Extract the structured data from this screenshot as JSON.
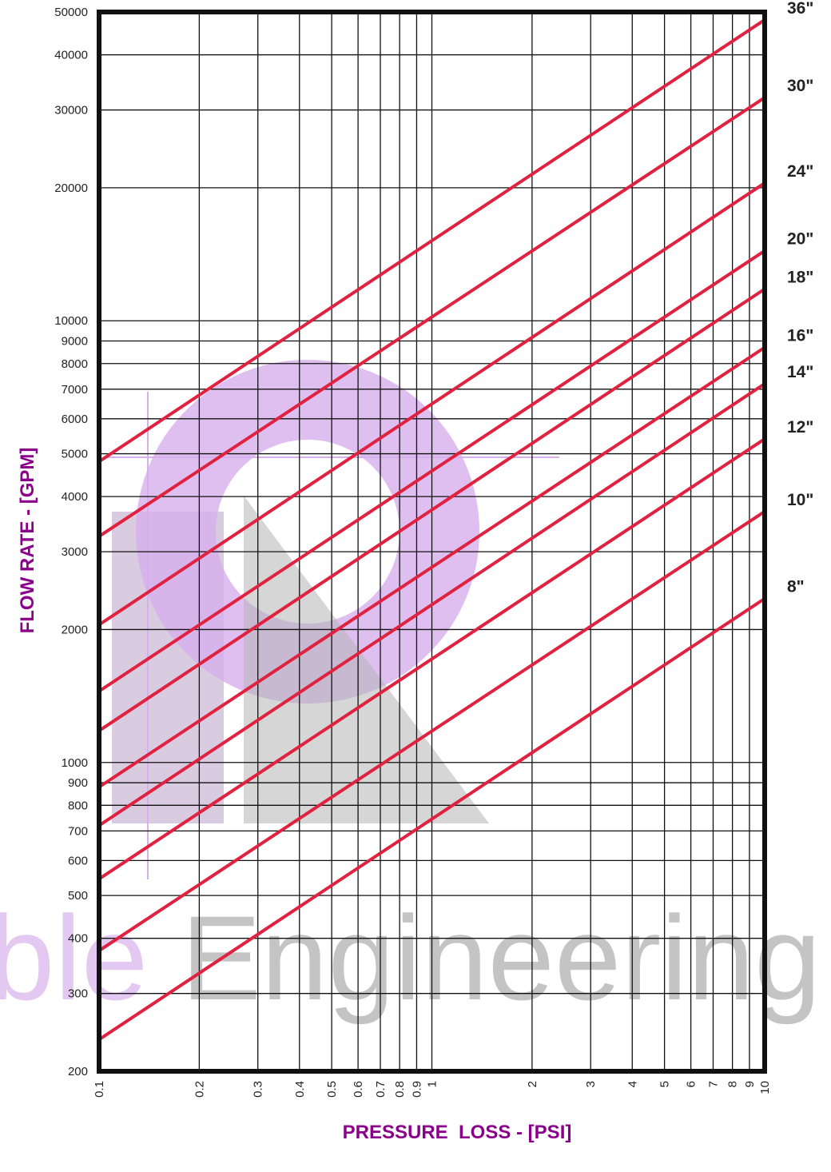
{
  "chart_data": {
    "type": "line",
    "xscale": "log",
    "yscale": "log",
    "xlim": [
      0.1,
      10
    ],
    "ylim": [
      200,
      50000
    ],
    "xlabel": "PRESSURE  LOSS - [PSI]",
    "ylabel": "FLOW RATE - [GPM]",
    "x_ticks": [
      0.1,
      0.2,
      0.3,
      0.4,
      0.5,
      0.6,
      0.7,
      0.8,
      0.9,
      1,
      2,
      3,
      4,
      5,
      6,
      7,
      8,
      9,
      10
    ],
    "x_tick_labels": [
      "0.1",
      "0.2",
      "0.3",
      "0.4",
      "0.5",
      "0.6",
      "0.7",
      "0.8",
      "0.9",
      "1",
      "2",
      "3",
      "4",
      "5",
      "6",
      "7",
      "8",
      "9",
      "10"
    ],
    "y_ticks": [
      200,
      300,
      400,
      500,
      600,
      700,
      800,
      900,
      1000,
      2000,
      3000,
      4000,
      5000,
      6000,
      7000,
      8000,
      9000,
      10000,
      20000,
      30000,
      40000,
      50000
    ],
    "y_tick_labels": [
      "200",
      "300",
      "400",
      "500",
      "600",
      "700",
      "800",
      "900",
      "1000",
      "2000",
      "3000",
      "4000",
      "5000",
      "6000",
      "7000",
      "8000",
      "9000",
      "10000",
      "20000",
      "30000",
      "40000",
      "50000"
    ],
    "grid": true,
    "series": [
      {
        "name": "36\"",
        "x": [
          0.1,
          10
        ],
        "y": [
          4800,
          48000
        ]
      },
      {
        "name": "30\"",
        "x": [
          0.1,
          10
        ],
        "y": [
          3250,
          32000
        ]
      },
      {
        "name": "24\"",
        "x": [
          0.1,
          10
        ],
        "y": [
          2050,
          20500
        ]
      },
      {
        "name": "20\"",
        "x": [
          0.1,
          10
        ],
        "y": [
          1450,
          14400
        ]
      },
      {
        "name": "18\"",
        "x": [
          0.1,
          10
        ],
        "y": [
          1180,
          11800
        ]
      },
      {
        "name": "16\"",
        "x": [
          0.1,
          10
        ],
        "y": [
          880,
          8700
        ]
      },
      {
        "name": "14\"",
        "x": [
          0.1,
          10
        ],
        "y": [
          720,
          7200
        ]
      },
      {
        "name": "12\"",
        "x": [
          0.1,
          10
        ],
        "y": [
          545,
          5400
        ]
      },
      {
        "name": "10\"",
        "x": [
          0.1,
          10
        ],
        "y": [
          375,
          3700
        ]
      },
      {
        "name": "8\"",
        "x": [
          0.1,
          10
        ],
        "y": [
          236,
          2350
        ]
      }
    ]
  },
  "colors": {
    "series_line": "#e0213f",
    "axis_title": "#8b008b",
    "frame": "#111111",
    "watermark_purple": "#c995e6",
    "watermark_gray": "#9a9a9a"
  },
  "watermark": {
    "text_colored": "ble",
    "text_gray": " Engineering"
  }
}
